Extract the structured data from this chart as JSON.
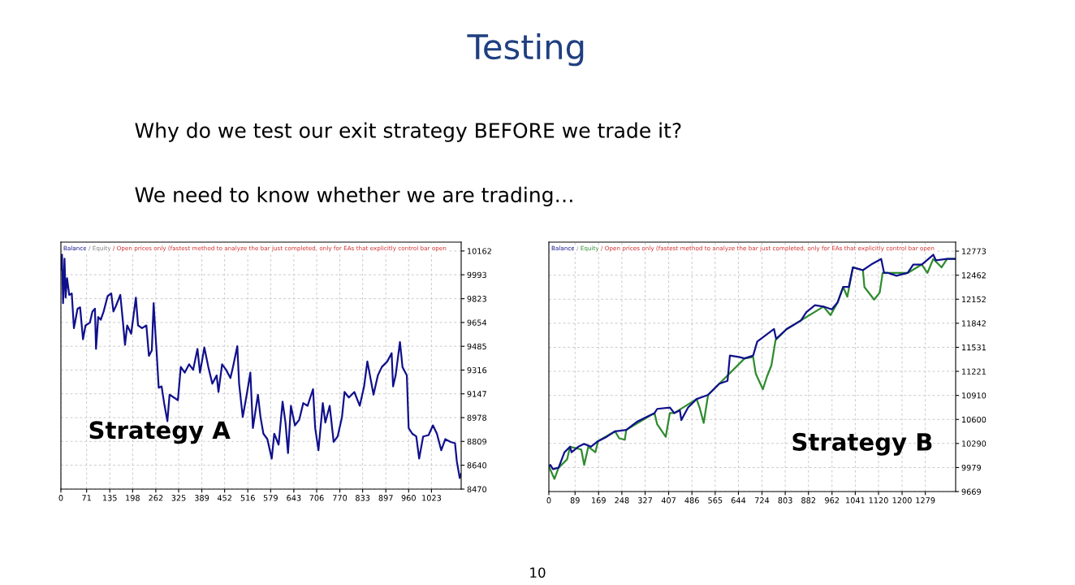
{
  "chart_data": [
    {
      "type": "line",
      "title": "Testing",
      "subtitle": "Why do we test our exit strategy BEFORE we trade it?",
      "annotations": [
        "We need to know whether we are trading…",
        "Strategy A",
        "/ Equity",
        "/ Open prices only (fastest method to analyze the bar just completed, only for EAs that explicitly control bar open",
        "10"
      ],
      "series": [
        {
          "name": "Balance",
          "color": "#10108c",
          "x": [
            0,
            3,
            4,
            6,
            10,
            13,
            17,
            23,
            30,
            36,
            46,
            53,
            61,
            68,
            80,
            87,
            94,
            97,
            103,
            110,
            118,
            129,
            139,
            145,
            152,
            164,
            170,
            177,
            183,
            194,
            207,
            213,
            224,
            236,
            243,
            251,
            256,
            261,
            264,
            270,
            278,
            285,
            294,
            300,
            312,
            323,
            331,
            342,
            354,
            365,
            377,
            384,
            396,
            407,
            418,
            430,
            435,
            445,
            456,
            468,
            475,
            487,
            492,
            502,
            513,
            523,
            530,
            544,
            551,
            559,
            570,
            582,
            589,
            601,
            612,
            620,
            627,
            635,
            646,
            658,
            669,
            681,
            696,
            702,
            711,
            723,
            730,
            742,
            753,
            764,
            776,
            783,
            795,
            810,
            825,
            837,
            846,
            856,
            863,
            875,
            886,
            901,
            913,
            917,
            924,
            936,
            943,
            955,
            960,
            970,
            981,
            989,
            1000,
            1015,
            1027,
            1038,
            1050,
            1061,
            1076,
            1088,
            1093,
            1101,
            1105
          ],
          "values": [
            10028,
            10136,
            10008,
            9791,
            10107,
            9831,
            9969,
            9850,
            9860,
            9614,
            9752,
            9762,
            9535,
            9633,
            9653,
            9732,
            9752,
            9466,
            9693,
            9673,
            9732,
            9841,
            9860,
            9732,
            9772,
            9850,
            9693,
            9495,
            9633,
            9574,
            9831,
            9633,
            9614,
            9633,
            9417,
            9456,
            9791,
            9574,
            9456,
            9190,
            9200,
            9081,
            8953,
            9141,
            9121,
            9101,
            9338,
            9298,
            9357,
            9318,
            9466,
            9298,
            9476,
            9338,
            9219,
            9278,
            9160,
            9357,
            9318,
            9259,
            9338,
            9486,
            9219,
            8983,
            9141,
            9298,
            8904,
            9141,
            8983,
            8864,
            8825,
            8687,
            8864,
            8786,
            9091,
            8943,
            8726,
            9062,
            8923,
            8963,
            9081,
            9062,
            9180,
            8904,
            8746,
            9081,
            8943,
            9062,
            8805,
            8844,
            8983,
            9160,
            9121,
            9160,
            9062,
            9200,
            9377,
            9239,
            9141,
            9278,
            9338,
            9377,
            9436,
            9200,
            9278,
            9515,
            9338,
            9278,
            8904,
            8864,
            8844,
            8687,
            8844,
            8854,
            8923,
            8864,
            8746,
            8825,
            8805,
            8796,
            8667,
            8549,
            8579
          ]
        }
      ],
      "xlim": [
        0,
        1105
      ],
      "xticks": [
        0,
        71,
        135,
        198,
        262,
        325,
        389,
        452,
        516,
        579,
        643,
        706,
        770,
        833,
        897,
        960,
        1023
      ],
      "ylim": [
        8470,
        10225
      ],
      "yticks": [
        8470,
        8640,
        8809,
        8978,
        9147,
        9316,
        9485,
        9654,
        9823,
        9993,
        10162
      ],
      "grid": true,
      "legend": "top left"
    },
    {
      "type": "line",
      "annotations": [
        "Strategy B",
        "/",
        "/ Open prices only (fastest method to analyze the bar just completed, only for EAs that explicitly control bar open"
      ],
      "series": [
        {
          "name": "Equity",
          "color": "#2e8b2e",
          "x": [
            0,
            19,
            33,
            62,
            72,
            110,
            120,
            134,
            158,
            167,
            225,
            239,
            258,
            263,
            359,
            368,
            397,
            411,
            426,
            502,
            512,
            526,
            541,
            665,
            694,
            703,
            727,
            741,
            756,
            770,
            808,
            933,
            957,
            981,
            1000,
            1014,
            1033,
            1067,
            1072,
            1105,
            1124,
            1134,
            1219,
            1267,
            1286,
            1306,
            1334,
            1353,
            1380
          ],
          "values": [
            9995,
            9832,
            9977,
            10085,
            10248,
            10212,
            10013,
            10248,
            10176,
            10320,
            10447,
            10356,
            10338,
            10465,
            10682,
            10537,
            10375,
            10682,
            10682,
            10863,
            10754,
            10555,
            10917,
            11388,
            11406,
            11189,
            10990,
            11153,
            11297,
            11623,
            11767,
            12057,
            11948,
            12111,
            12310,
            12184,
            12563,
            12527,
            12310,
            12147,
            12238,
            12491,
            12491,
            12600,
            12491,
            12672,
            12563,
            12672,
            12672
          ]
        },
        {
          "name": "Balance",
          "color": "#10108c",
          "x": [
            0,
            5,
            14,
            33,
            53,
            72,
            77,
            100,
            120,
            143,
            167,
            196,
            225,
            263,
            301,
            330,
            359,
            368,
            411,
            426,
            445,
            450,
            473,
            502,
            541,
            579,
            607,
            615,
            646,
            665,
            694,
            708,
            765,
            772,
            808,
            856,
            875,
            904,
            933,
            961,
            981,
            1000,
            1019,
            1033,
            1067,
            1095,
            1129,
            1139,
            1153,
            1181,
            1219,
            1238,
            1267,
            1306,
            1315,
            1353,
            1380
          ],
          "values": [
            9995,
            10013,
            9958,
            9977,
            10176,
            10248,
            10176,
            10248,
            10284,
            10248,
            10320,
            10375,
            10447,
            10465,
            10574,
            10628,
            10682,
            10736,
            10754,
            10682,
            10718,
            10592,
            10754,
            10863,
            10917,
            11062,
            11098,
            11424,
            11406,
            11388,
            11424,
            11605,
            11767,
            11641,
            11767,
            11876,
            11985,
            12075,
            12057,
            12021,
            12111,
            12310,
            12310,
            12563,
            12527,
            12600,
            12672,
            12491,
            12491,
            12455,
            12491,
            12600,
            12600,
            12726,
            12654,
            12672,
            12672
          ]
        }
      ],
      "xlim": [
        0,
        1382
      ],
      "xticks": [
        0,
        89,
        169,
        248,
        327,
        407,
        486,
        565,
        644,
        724,
        803,
        882,
        962,
        1041,
        1120,
        1200,
        1279
      ],
      "ylim": [
        9669,
        12889
      ],
      "yticks": [
        9669,
        9979,
        10290,
        10600,
        10910,
        11221,
        11531,
        11842,
        12152,
        12462,
        12773
      ],
      "grid": true,
      "legend": "top left"
    }
  ]
}
